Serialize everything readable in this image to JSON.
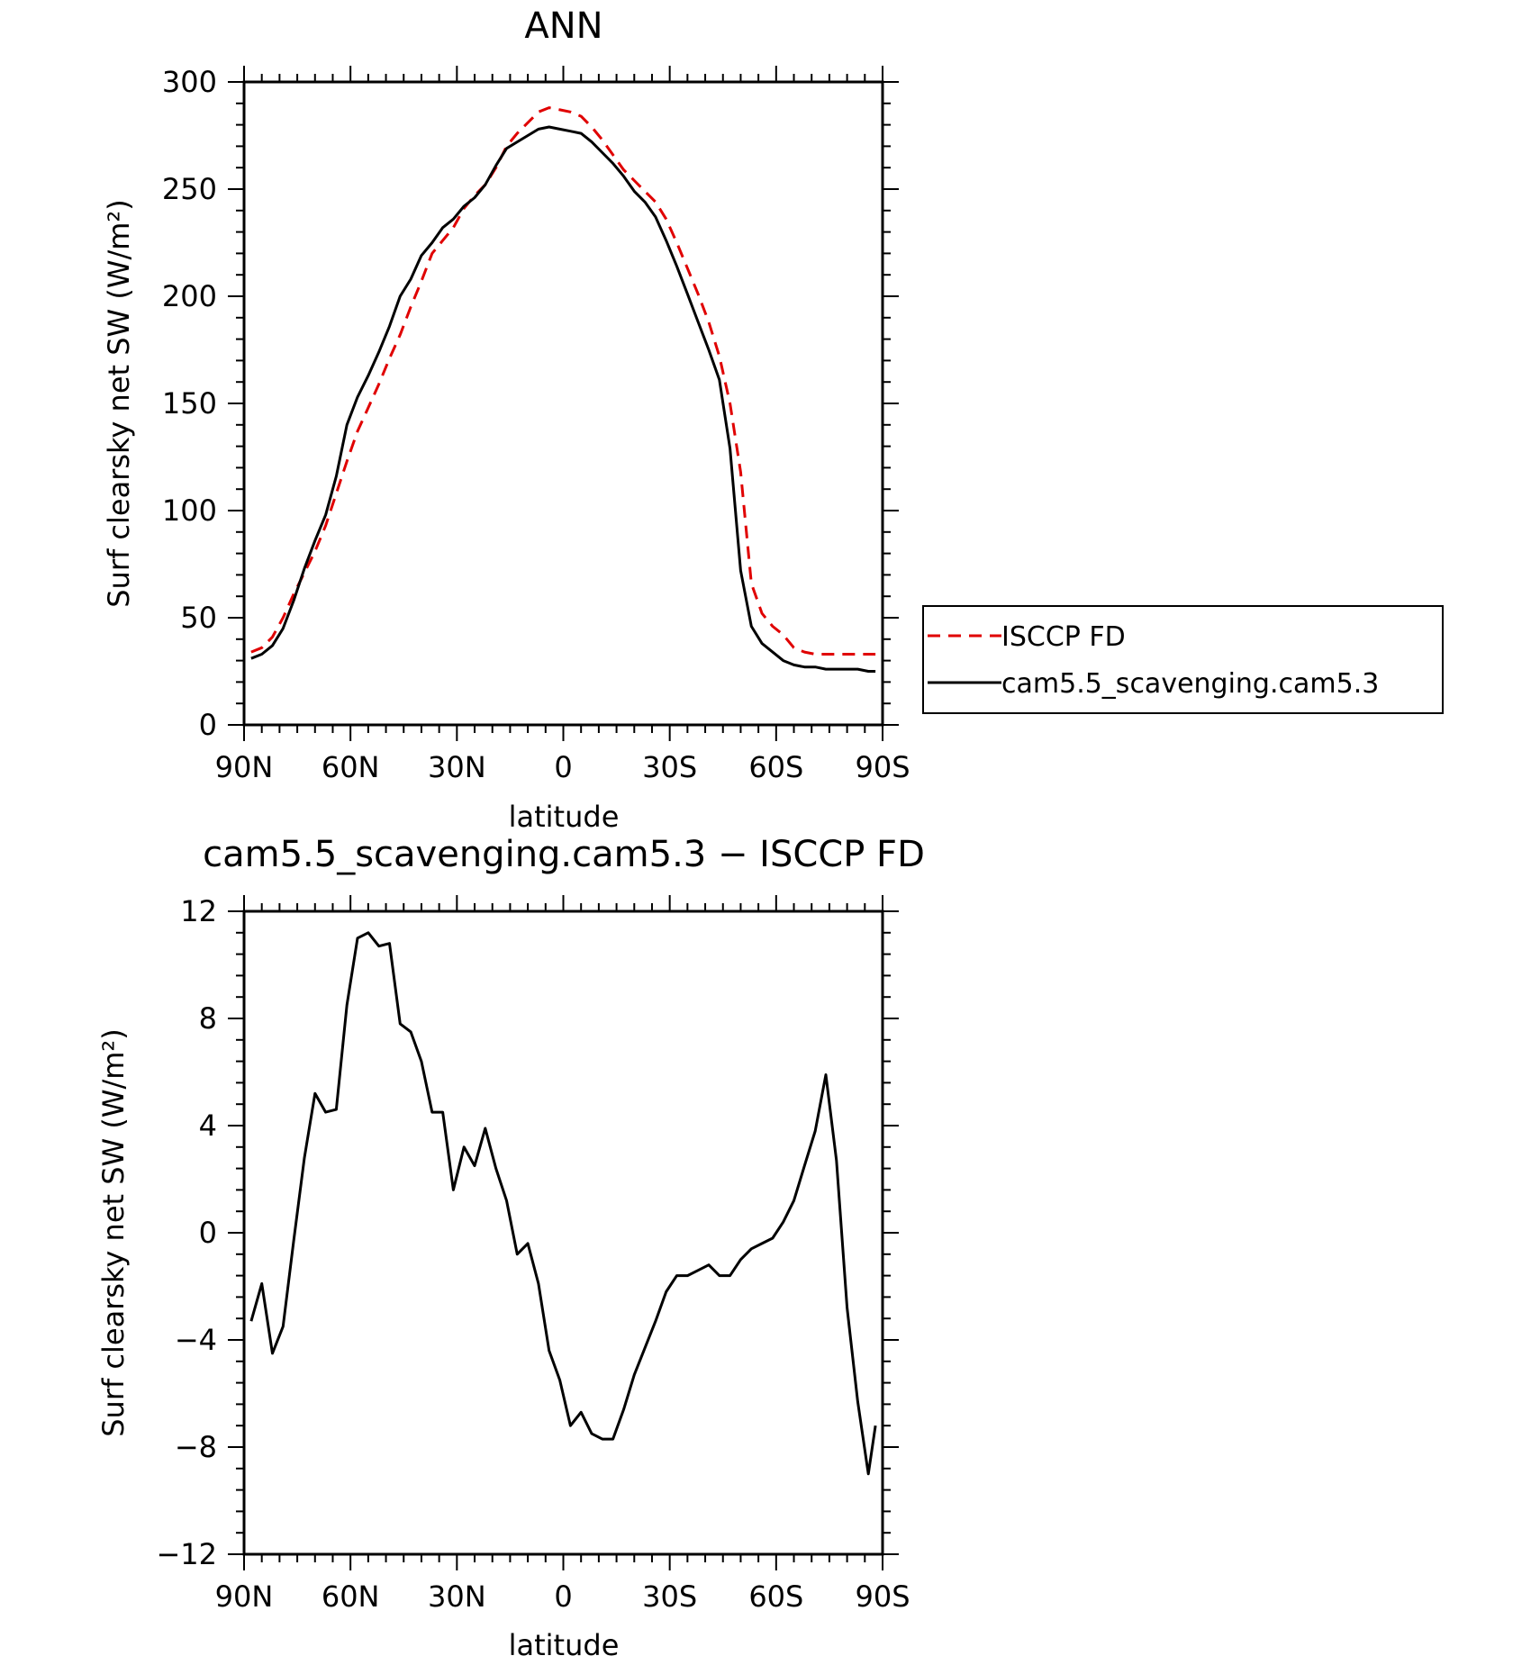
{
  "chart_data": [
    {
      "type": "line",
      "title": "ANN",
      "xlabel": "latitude",
      "ylabel": "Surf clearsky net SW (W/m²)",
      "ylim": [
        0,
        300
      ],
      "yticks": [
        0,
        50,
        100,
        150,
        200,
        250,
        300
      ],
      "xlim": [
        90,
        -90
      ],
      "xticks": [
        90,
        60,
        30,
        0,
        -30,
        -60,
        -90
      ],
      "xticklabels": [
        "90N",
        "60N",
        "30N",
        "0",
        "30S",
        "60S",
        "90S"
      ],
      "legend_position": "right",
      "series": [
        {
          "name": "ISCCP FD",
          "color": "#e00000",
          "dash": "dashed",
          "x": [
            88,
            85,
            82,
            79,
            76,
            73,
            70,
            67,
            64,
            61,
            58,
            55,
            52,
            49,
            46,
            43,
            40,
            37,
            34,
            31,
            28,
            25,
            22,
            19,
            16,
            13,
            10,
            7,
            4,
            1,
            -2,
            -5,
            -8,
            -11,
            -14,
            -17,
            -20,
            -23,
            -26,
            -29,
            -32,
            -35,
            -38,
            -41,
            -44,
            -47,
            -50,
            -53,
            -56,
            -59,
            -62,
            -65,
            -68,
            -71,
            -74,
            -77,
            -80,
            -83,
            -86,
            -88
          ],
          "y": [
            34,
            36,
            41,
            50,
            61,
            71,
            81,
            93,
            108,
            123,
            137,
            148,
            159,
            171,
            182,
            195,
            207,
            220,
            226,
            232,
            241,
            247,
            252,
            260,
            270,
            276,
            281,
            286,
            288,
            287,
            286,
            284,
            279,
            273,
            266,
            259,
            254,
            249,
            244,
            236,
            225,
            213,
            201,
            188,
            172,
            150,
            118,
            66,
            52,
            46,
            42,
            36,
            34,
            33,
            33,
            33,
            33,
            33,
            33,
            33
          ]
        },
        {
          "name": "cam5.5_scavenging.cam5.3",
          "color": "#000000",
          "dash": "solid",
          "x": [
            88,
            85,
            82,
            79,
            76,
            73,
            70,
            67,
            64,
            61,
            58,
            55,
            52,
            49,
            46,
            43,
            40,
            37,
            34,
            31,
            28,
            25,
            22,
            19,
            16,
            13,
            10,
            7,
            4,
            1,
            -2,
            -5,
            -8,
            -11,
            -14,
            -17,
            -20,
            -23,
            -26,
            -29,
            -32,
            -35,
            -38,
            -41,
            -44,
            -47,
            -50,
            -53,
            -56,
            -59,
            -62,
            -65,
            -68,
            -71,
            -74,
            -77,
            -80,
            -83,
            -86,
            -88
          ],
          "y": [
            31,
            33,
            37,
            45,
            58,
            73,
            86,
            98,
            116,
            140,
            153,
            163,
            174,
            186,
            200,
            208,
            219,
            225,
            232,
            236,
            242,
            246,
            252,
            261,
            269,
            272,
            275,
            278,
            279,
            278,
            277,
            276,
            272,
            267,
            262,
            256,
            249,
            244,
            237,
            226,
            214,
            201,
            188,
            175,
            161,
            129,
            72,
            46,
            38,
            34,
            30,
            28,
            27,
            27,
            26,
            26,
            26,
            26,
            25,
            25
          ]
        }
      ]
    },
    {
      "type": "line",
      "title": "cam5.5_scavenging.cam5.3 − ISCCP FD",
      "xlabel": "latitude",
      "ylabel": "Surf clearsky net SW (W/m²)",
      "ylim": [
        -12,
        12
      ],
      "yticks": [
        -12,
        -8,
        -4,
        0,
        4,
        8,
        12
      ],
      "xlim": [
        90,
        -90
      ],
      "xticks": [
        90,
        60,
        30,
        0,
        -30,
        -60,
        -90
      ],
      "xticklabels": [
        "90N",
        "60N",
        "30N",
        "0",
        "30S",
        "60S",
        "90S"
      ],
      "series": [
        {
          "color": "#000000",
          "dash": "solid",
          "x": [
            88,
            85,
            82,
            79,
            76,
            73,
            70,
            67,
            64,
            61,
            58,
            55,
            52,
            49,
            46,
            43,
            40,
            37,
            34,
            31,
            28,
            25,
            22,
            19,
            16,
            13,
            10,
            7,
            4,
            1,
            -2,
            -5,
            -8,
            -11,
            -14,
            -17,
            -20,
            -23,
            -26,
            -29,
            -32,
            -35,
            -38,
            -41,
            -44,
            -47,
            -50,
            -53,
            -56,
            -59,
            -62,
            -65,
            -68,
            -71,
            -74,
            -77,
            -80,
            -83,
            -86,
            -88
          ],
          "y": [
            -3.3,
            -1.9,
            -4.5,
            -3.5,
            -0.3,
            2.8,
            5.2,
            4.5,
            4.6,
            8.5,
            11,
            11.2,
            10.7,
            10.8,
            7.8,
            7.5,
            6.4,
            4.5,
            4.5,
            1.6,
            3.2,
            2.5,
            3.9,
            2.4,
            1.2,
            -0.8,
            -0.4,
            -1.9,
            -4.4,
            -5.5,
            -7.2,
            -6.7,
            -7.5,
            -7.7,
            -7.7,
            -6.6,
            -5.3,
            -4.3,
            -3.3,
            -2.2,
            -1.6,
            -1.6,
            -1.4,
            -1.2,
            -1.6,
            -1.6,
            -1,
            -0.6,
            -0.4,
            -0.2,
            0.4,
            1.2,
            2.5,
            3.8,
            5.9,
            2.7,
            -2.8,
            -6.3,
            -9,
            -7.2
          ]
        }
      ]
    }
  ]
}
